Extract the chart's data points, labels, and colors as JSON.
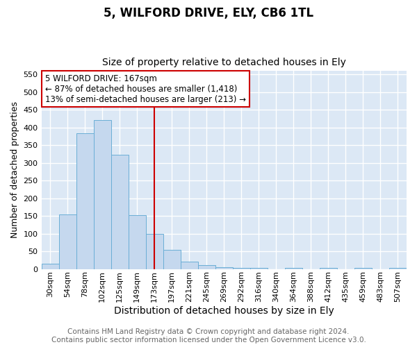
{
  "title": "5, WILFORD DRIVE, ELY, CB6 1TL",
  "subtitle": "Size of property relative to detached houses in Ely",
  "xlabel": "Distribution of detached houses by size in Ely",
  "ylabel": "Number of detached properties",
  "categories": [
    "30sqm",
    "54sqm",
    "78sqm",
    "102sqm",
    "125sqm",
    "149sqm",
    "173sqm",
    "197sqm",
    "221sqm",
    "245sqm",
    "269sqm",
    "292sqm",
    "316sqm",
    "340sqm",
    "364sqm",
    "388sqm",
    "412sqm",
    "435sqm",
    "459sqm",
    "483sqm",
    "507sqm"
  ],
  "values": [
    15,
    155,
    383,
    422,
    323,
    152,
    100,
    55,
    20,
    10,
    5,
    3,
    3,
    0,
    4,
    0,
    3,
    0,
    3,
    0,
    3
  ],
  "bar_color": "#c5d8ee",
  "bar_edge_color": "#6aaed6",
  "vline_x": 6,
  "vline_color": "#cc0000",
  "annotation_line1": "5 WILFORD DRIVE: 167sqm",
  "annotation_line2": "← 87% of detached houses are smaller (1,418)",
  "annotation_line3": "13% of semi-detached houses are larger (213) →",
  "annotation_box_color": "#ffffff",
  "annotation_box_edge_color": "#cc0000",
  "ylim": [
    0,
    560
  ],
  "yticks": [
    0,
    50,
    100,
    150,
    200,
    250,
    300,
    350,
    400,
    450,
    500,
    550
  ],
  "background_color": "#dce8f5",
  "grid_color": "#ffffff",
  "footer_text": "Contains HM Land Registry data © Crown copyright and database right 2024.\nContains public sector information licensed under the Open Government Licence v3.0.",
  "title_fontsize": 12,
  "subtitle_fontsize": 10,
  "xlabel_fontsize": 10,
  "ylabel_fontsize": 9,
  "tick_fontsize": 8,
  "footer_fontsize": 7.5
}
